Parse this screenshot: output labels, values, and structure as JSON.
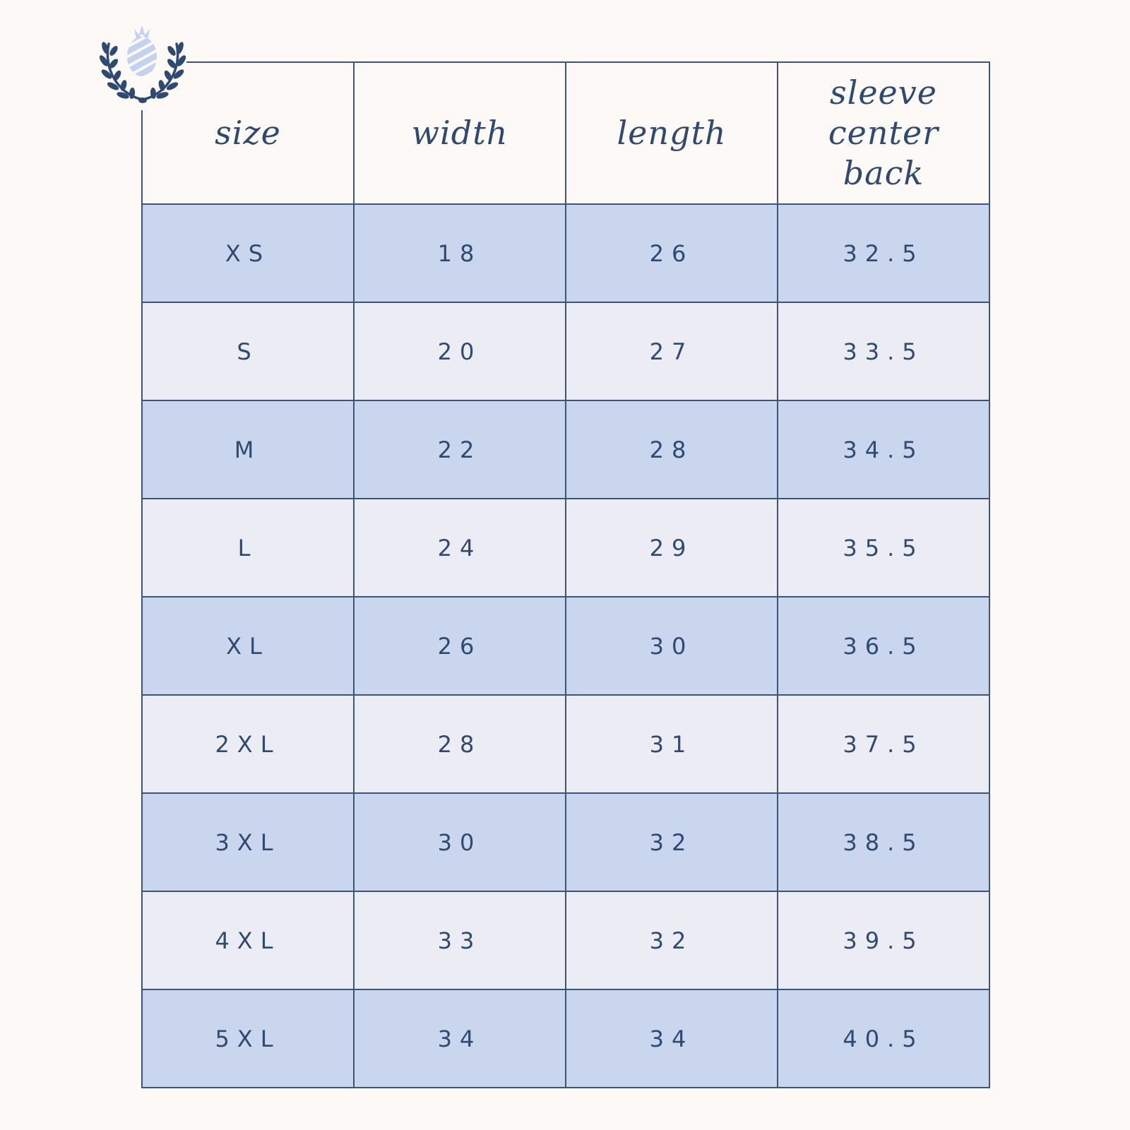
{
  "header": {
    "size": "size",
    "width": "width",
    "length": "length",
    "sleeve": [
      "sleeve",
      "center",
      "back"
    ]
  },
  "colors": {
    "border": "#3b5478",
    "text": "#2f4a72",
    "row_dark": "#c9d6ed",
    "row_light": "#ecedf4",
    "background": "#fcf9f6"
  },
  "logo": {
    "icon": "pineapple-laurel-icon"
  },
  "rows": [
    {
      "size": "XS",
      "width": "18",
      "length": "26",
      "sleeve": "32.5"
    },
    {
      "size": "S",
      "width": "20",
      "length": "27",
      "sleeve": "33.5"
    },
    {
      "size": "M",
      "width": "22",
      "length": "28",
      "sleeve": "34.5"
    },
    {
      "size": "L",
      "width": "24",
      "length": "29",
      "sleeve": "35.5"
    },
    {
      "size": "XL",
      "width": "26",
      "length": "30",
      "sleeve": "36.5"
    },
    {
      "size": "2XL",
      "width": "28",
      "length": "31",
      "sleeve": "37.5"
    },
    {
      "size": "3XL",
      "width": "30",
      "length": "32",
      "sleeve": "38.5"
    },
    {
      "size": "4XL",
      "width": "33",
      "length": "32",
      "sleeve": "39.5"
    },
    {
      "size": "5XL",
      "width": "34",
      "length": "34",
      "sleeve": "40.5"
    }
  ]
}
